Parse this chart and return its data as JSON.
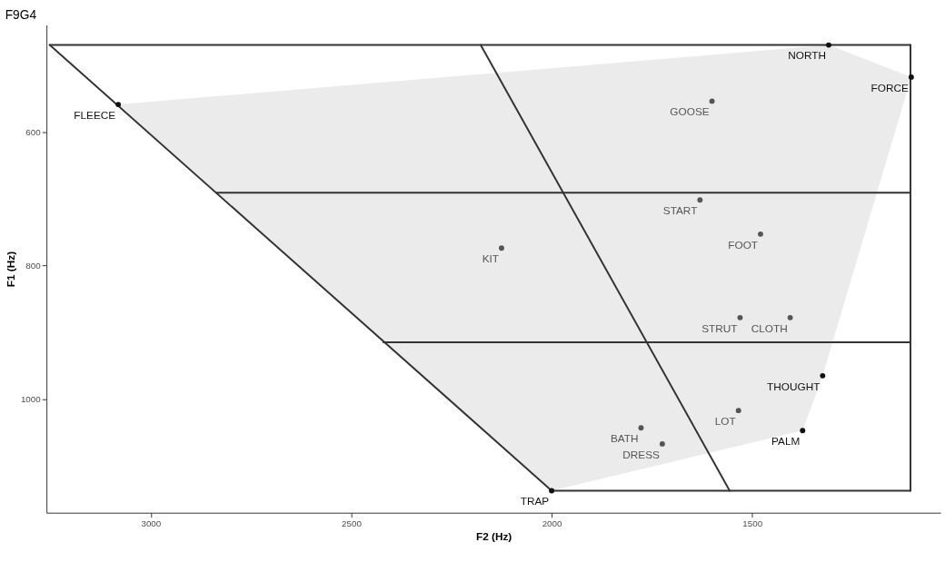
{
  "chart_data": {
    "type": "scatter",
    "title": "F9G4",
    "xlabel": "F2 (Hz)",
    "ylabel": "F1 (Hz)",
    "xlim": [
      3260,
      1030
    ],
    "ylim": [
      1170,
      440
    ],
    "xticks": [
      3000,
      2500,
      2000,
      1500
    ],
    "yticks": [
      600,
      800,
      1000
    ],
    "grid": false,
    "series": [
      {
        "type": "area",
        "color": "#ebebeb",
        "x": [
          3081,
          1309,
          1103,
          1324,
          1374,
          2000
        ],
        "values": [
          559,
          470,
          518,
          965,
          1047,
          1137
        ]
      },
      {
        "type": "line",
        "color": "#333333",
        "x": [
          3252,
          1105
        ],
        "values": [
          470,
          470
        ]
      },
      {
        "type": "line",
        "color": "#333333",
        "x": [
          1105,
          1105
        ],
        "values": [
          470,
          1137
        ]
      },
      {
        "type": "line",
        "color": "#333333",
        "x": [
          2000,
          1105
        ],
        "values": [
          1137,
          1137
        ]
      },
      {
        "type": "line",
        "color": "#333333",
        "x": [
          3252,
          2000
        ],
        "values": [
          470,
          1137
        ]
      },
      {
        "type": "line",
        "color": "#333333",
        "x": [
          2177,
          1556
        ],
        "values": [
          470,
          1137
        ]
      },
      {
        "type": "line",
        "color": "#333333",
        "x": [
          2836,
          1105
        ],
        "values": [
          691,
          691
        ]
      },
      {
        "type": "line",
        "color": "#333333",
        "x": [
          2420,
          1105
        ],
        "values": [
          915,
          915
        ]
      },
      {
        "x": [
          3081,
          1309,
          1103,
          1600,
          1630,
          1479,
          2125,
          1530,
          1405,
          1324,
          1534,
          1374,
          1777,
          1724,
          2000
        ],
        "values": [
          559,
          470,
          518,
          554,
          702,
          753,
          774,
          878,
          878,
          965,
          1017,
          1047,
          1043,
          1067,
          1137
        ],
        "colors": [
          "#111111",
          "#111111",
          "#111111",
          "#555555",
          "#555555",
          "#555555",
          "#555555",
          "#555555",
          "#555555",
          "#111111",
          "#555555",
          "#111111",
          "#555555",
          "#555555",
          "#111111"
        ],
        "value_labels": [
          "FLEECE",
          "NORTH",
          "FORCE",
          "GOOSE",
          "START",
          "FOOT",
          "KIT",
          "STRUT",
          "CLOTH",
          "THOUGHT",
          "LOT",
          "PALM",
          "BATH",
          "DRESS",
          "TRAP"
        ]
      }
    ]
  }
}
